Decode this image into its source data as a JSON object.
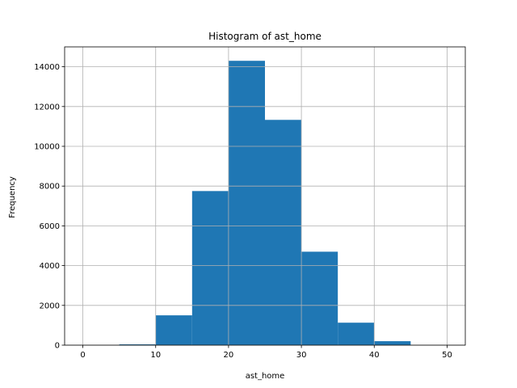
{
  "chart_data": {
    "type": "bar",
    "title": "Histogram of ast_home",
    "xlabel": "ast_home",
    "ylabel": "Frequency",
    "bin_edges": [
      0,
      5,
      10,
      15,
      20,
      25,
      30,
      35,
      40,
      45,
      50
    ],
    "values": [
      0,
      40,
      1500,
      7750,
      14300,
      11330,
      4700,
      1130,
      200,
      0
    ],
    "xlim": [
      -2.5,
      52.5
    ],
    "ylim": [
      0,
      15000
    ],
    "xticks": [
      0,
      10,
      20,
      30,
      40,
      50
    ],
    "yticks": [
      0,
      2000,
      4000,
      6000,
      8000,
      10000,
      12000,
      14000
    ],
    "grid": true,
    "bar_color": "#1f77b4"
  }
}
